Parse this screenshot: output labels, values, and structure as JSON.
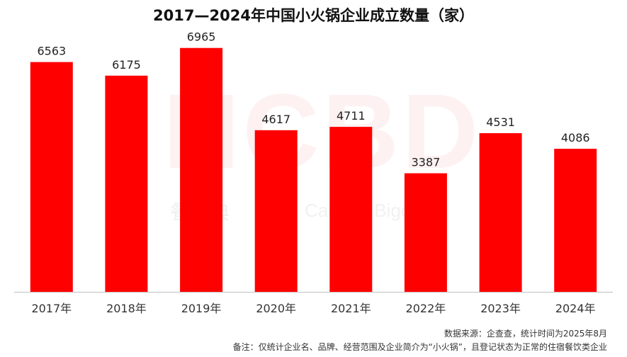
{
  "title": "2017—2024年中国小火锅企业成立数量（家）",
  "watermark": {
    "logo": "HCBD",
    "cn": "餐宝典",
    "en": "Canbao Bigdata"
  },
  "chart_data": {
    "type": "bar",
    "title": "2017—2024年中国小火锅企业成立数量（家）",
    "categories": [
      "2017年",
      "2018年",
      "2019年",
      "2020年",
      "2021年",
      "2022年",
      "2023年",
      "2024年"
    ],
    "values": [
      6563,
      6175,
      6965,
      4617,
      4711,
      3387,
      4531,
      4086
    ],
    "xlabel": "",
    "ylabel": "",
    "ylim": [
      0,
      7000
    ],
    "grid": false,
    "bar_color": "#ff0000",
    "axis_color": "#bfbfbf",
    "legend": "none"
  },
  "footer": {
    "source": "数据来源：企查查，统计时间为2025年8月",
    "note": "备注：仅统计企业名、品牌、经营范围及企业简介为“小火锅”，且登记状态为正常的住宿餐饮类企业"
  }
}
